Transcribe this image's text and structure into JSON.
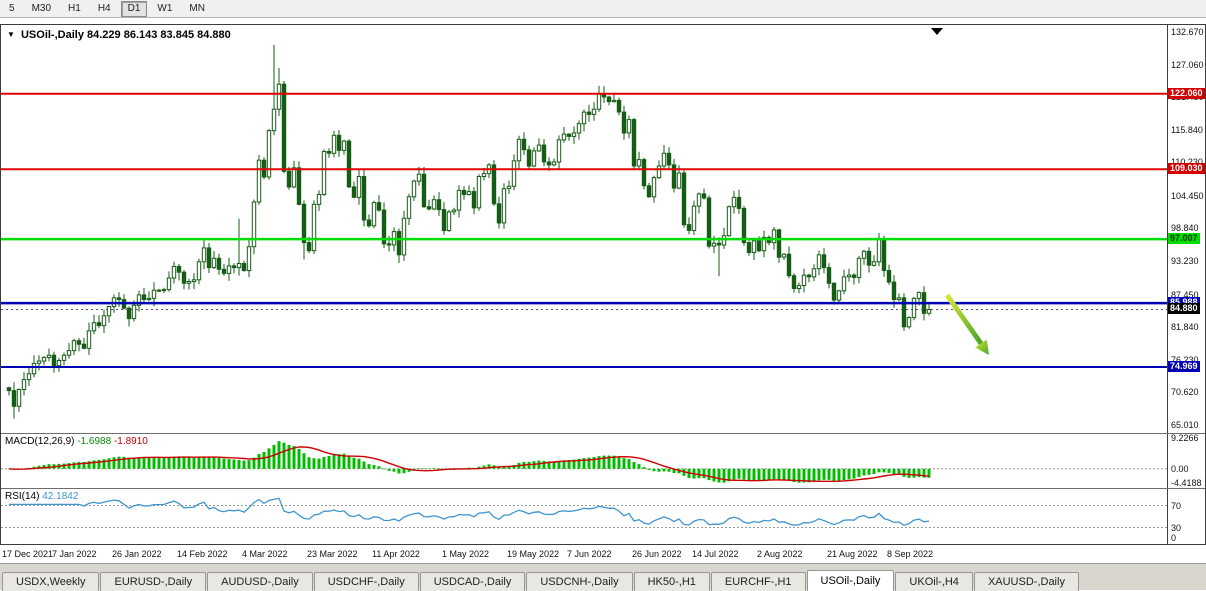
{
  "toolbar": {
    "timeframes": [
      "5",
      "M30",
      "H1",
      "H4",
      "D1",
      "W1",
      "MN"
    ],
    "active_timeframe": "D1"
  },
  "chart": {
    "title": "USOil-,Daily",
    "ohlc_text": "84.229 86.143 83.845 84.880",
    "open": "84.229",
    "high": "86.143",
    "low": "83.845",
    "close": "84.880"
  },
  "price_axis": {
    "labels": [
      "132.670",
      "127.060",
      "121.450",
      "115.840",
      "110.230",
      "104.450",
      "98.840",
      "93.230",
      "87.450",
      "81.840",
      "76.230",
      "70.620",
      "65.010"
    ],
    "tags": [
      {
        "text": "122.060",
        "value": 122.06,
        "bg": "#d40000",
        "fg": "#ffffff",
        "kind": "resistance"
      },
      {
        "text": "109.030",
        "value": 109.03,
        "bg": "#d40000",
        "fg": "#ffffff",
        "kind": "resistance"
      },
      {
        "text": "97.007",
        "value": 97.007,
        "bg": "#00dd00",
        "fg": "#003300",
        "kind": "support"
      },
      {
        "text": "85.988",
        "value": 85.988,
        "bg": "#0000b4",
        "fg": "#ffffff",
        "kind": "support"
      },
      {
        "text": "84.880",
        "value": 84.88,
        "bg": "#000000",
        "fg": "#ffffff",
        "kind": "current-price"
      },
      {
        "text": "74.969",
        "value": 74.969,
        "bg": "#0000b4",
        "fg": "#ffffff",
        "kind": "support"
      }
    ]
  },
  "chart_data": {
    "type": "candlestick",
    "symbol": "USOil-",
    "timeframe": "Daily",
    "title": "USOil-,Daily 84.229 86.143 83.845 84.880",
    "y_range": [
      63.6,
      133.9
    ],
    "first_open": 71.4,
    "closes": [
      70.9,
      68.2,
      71.1,
      72.8,
      73.8,
      75.6,
      76.0,
      76.6,
      77.0,
      75.2,
      76.1,
      77.0,
      77.8,
      79.5,
      78.9,
      78.2,
      81.2,
      82.6,
      82.1,
      83.8,
      85.4,
      86.9,
      86.6,
      85.1,
      83.3,
      85.6,
      87.4,
      86.6,
      86.8,
      88.2,
      88.2,
      88.3,
      90.3,
      92.3,
      91.3,
      89.4,
      89.7,
      90.0,
      93.1,
      95.5,
      92.1,
      93.7,
      91.8,
      91.1,
      92.4,
      92.1,
      92.8,
      91.6,
      95.7,
      103.4,
      110.6,
      107.7,
      115.7,
      119.4,
      123.7,
      108.7,
      106.0,
      109.3,
      103.0,
      96.4,
      95.0,
      103.0,
      104.7,
      112.1,
      111.8,
      114.9,
      112.3,
      113.9,
      106.0,
      104.2,
      107.8,
      100.3,
      99.3,
      103.3,
      102.0,
      96.2,
      96.0,
      98.3,
      94.3,
      100.6,
      104.3,
      107.0,
      108.2,
      102.6,
      102.2,
      103.8,
      102.1,
      98.5,
      101.7,
      102.0,
      105.4,
      104.7,
      105.2,
      102.4,
      107.8,
      108.3,
      109.8,
      103.1,
      99.8,
      105.7,
      106.1,
      110.5,
      114.2,
      112.4,
      109.6,
      112.2,
      113.2,
      110.3,
      109.8,
      110.3,
      114.1,
      115.1,
      114.7,
      115.3,
      116.9,
      118.9,
      118.5,
      119.4,
      122.1,
      121.5,
      120.7,
      120.9,
      118.9,
      115.3,
      117.6,
      109.6,
      110.7,
      106.2,
      104.3,
      107.6,
      109.6,
      111.8,
      109.8,
      105.8,
      108.4,
      99.5,
      98.5,
      102.7,
      104.8,
      104.1,
      95.8,
      96.3,
      96.0,
      97.6,
      102.6,
      104.2,
      102.3,
      96.4,
      94.7,
      96.7,
      95.0,
      97.3,
      96.4,
      98.6,
      93.9,
      94.4,
      90.7,
      88.5,
      89.0,
      90.8,
      90.5,
      91.9,
      94.3,
      92.1,
      89.4,
      86.5,
      88.1,
      90.5,
      90.8,
      90.4,
      93.7,
      94.9,
      92.5,
      93.1,
      97.0,
      91.6,
      89.6,
      86.6,
      86.9,
      81.9,
      83.5,
      86.8,
      87.8,
      84.23,
      84.88
    ],
    "high_overrides": {
      "46": 100.5,
      "53": 130.5,
      "54": 126.5,
      "118": 123.4,
      "184": 86.143
    },
    "low_overrides": {
      "1": 66.1,
      "59": 93.5,
      "78": 92.9,
      "142": 90.6,
      "165": 85.7,
      "179": 81.2,
      "184": 83.845
    },
    "current_price": 84.88,
    "horizontal_lines": [
      {
        "value": 122.06,
        "color": "#e00000",
        "width": 2,
        "label": "122.060"
      },
      {
        "value": 109.03,
        "color": "#e00000",
        "width": 2,
        "label": "109.030"
      },
      {
        "value": 97.007,
        "color": "#00dd00",
        "width": 2.5,
        "label": "97.007"
      },
      {
        "value": 85.988,
        "color": "#0000b4",
        "width": 2.5,
        "label": "85.988"
      },
      {
        "value": 74.969,
        "color": "#0000b4",
        "width": 2,
        "label": "74.969"
      }
    ],
    "date_labels": [
      {
        "label": "17 Dec 2021",
        "index": 0
      },
      {
        "label": "7 Jan 2022",
        "index": 14
      },
      {
        "label": "26 Jan 2022",
        "index": 26
      },
      {
        "label": "14 Feb 2022",
        "index": 39
      },
      {
        "label": "4 Mar 2022",
        "index": 52
      },
      {
        "label": "23 Mar 2022",
        "index": 65
      },
      {
        "label": "11 Apr 2022",
        "index": 78
      },
      {
        "label": "1 May 2022",
        "index": 92
      },
      {
        "label": "19 May 2022",
        "index": 105
      },
      {
        "label": "7 Jun 2022",
        "index": 117
      },
      {
        "label": "26 Jun 2022",
        "index": 130
      },
      {
        "label": "14 Jul 2022",
        "index": 142
      },
      {
        "label": "2 Aug 2022",
        "index": 155
      },
      {
        "label": "21 Aug 2022",
        "index": 169
      },
      {
        "label": "8 Sep 2022",
        "index": 181
      }
    ],
    "annotations": {
      "trend_arrow": {
        "type": "arrow",
        "color_start": "#dce838",
        "color_end": "#44a428",
        "from": [
          946,
          270
        ],
        "to": [
          988,
          330
        ]
      },
      "top_marker": {
        "type": "down-triangle",
        "color": "#000000",
        "x": 936,
        "y": 3
      }
    },
    "colors": {
      "candle_outline": "#155c15",
      "bull_fill": "#ffffff",
      "bear_fill": "#155c15",
      "macd_histogram": "#00bb00",
      "macd_signal": "#cc0000",
      "rsi_line": "#3e95d1"
    }
  },
  "macd": {
    "label": "MACD(12,26,9)",
    "value_main": "-1.6988",
    "value_signal": "-1.8910",
    "params": [
      12,
      26,
      9
    ],
    "scale_max": 9.2266,
    "scale_min": -4.4188,
    "axis": [
      "9.2266",
      "0.00",
      "-4.4188"
    ]
  },
  "rsi": {
    "label": "RSI(14)",
    "value": "42.1842",
    "period": 14,
    "levels": [
      70,
      30
    ],
    "axis": [
      "70",
      "30",
      "0"
    ]
  },
  "tabs": {
    "items": [
      "USDX,Weekly",
      "EURUSD-,Daily",
      "AUDUSD-,Daily",
      "USDCHF-,Daily",
      "USDCAD-,Daily",
      "USDCNH-,Daily",
      "HK50-,H1",
      "EURCHF-,H1",
      "USOil-,Daily",
      "UKOil-,H4",
      "XAUUSD-,Daily"
    ],
    "active": "USOil-,Daily"
  }
}
